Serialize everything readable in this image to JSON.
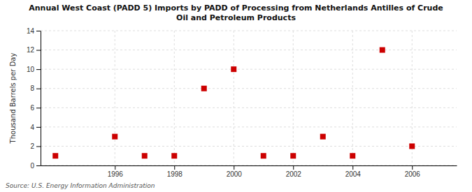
{
  "chart_data": {
    "type": "scatter",
    "title": "Annual West Coast (PADD 5) Imports by PADD of Processing from Netherlands Antilles of Crude\nOil and Petroleum Products",
    "ylabel": "Thousand Barrels per Day",
    "source": "Source: U.S. Energy Information Administration",
    "x": [
      1994,
      1996,
      1997,
      1998,
      1999,
      2000,
      2001,
      2002,
      2003,
      2004,
      2005,
      2006
    ],
    "values": [
      1,
      3,
      1,
      1,
      8,
      10,
      1,
      1,
      3,
      1,
      12,
      2
    ],
    "color": "#cc0000",
    "marker": "square",
    "xlim": [
      1993.5,
      2007.5
    ],
    "ylim": [
      0,
      14
    ],
    "xticks": [
      1996,
      1998,
      2000,
      2002,
      2004,
      2006
    ],
    "yticks": [
      0,
      2,
      4,
      6,
      8,
      10,
      12,
      14
    ],
    "grid": true
  }
}
